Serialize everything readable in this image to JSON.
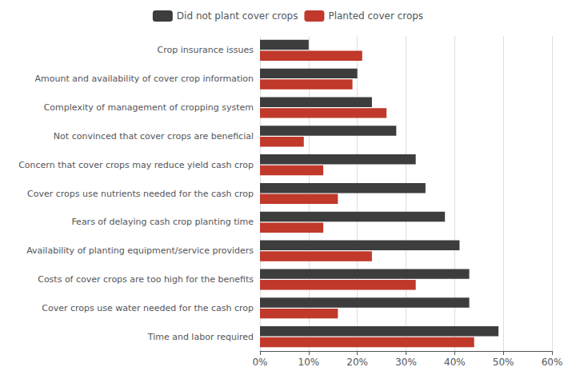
{
  "chart_data": {
    "type": "bar",
    "orientation": "horizontal",
    "categories": [
      "Time and labor required",
      "Cover crops use water needed for the cash crop",
      "Costs of cover crops are too high for the benefits",
      "Availability of planting equipment/service providers",
      "Fears of delaying cash crop planting time",
      "Cover crops use nutrients needed for the cash crop",
      "Concern that cover crops may reduce yield cash crop",
      "Not convinced that cover crops are beneficial",
      "Complexity of management of cropping system",
      "Amount and availability of cover crop information",
      "Crop insurance issues"
    ],
    "series": [
      {
        "name": "Did not plant cover crops",
        "color": "#3D3D3D",
        "values": [
          0.49,
          0.43,
          0.43,
          0.41,
          0.38,
          0.34,
          0.32,
          0.28,
          0.23,
          0.2,
          0.1
        ]
      },
      {
        "name": "Planted cover crops",
        "color": "#C0392B",
        "values": [
          0.44,
          0.16,
          0.32,
          0.23,
          0.13,
          0.16,
          0.13,
          0.09,
          0.26,
          0.19,
          0.21
        ]
      }
    ],
    "xlim": [
      0,
      0.6
    ],
    "xticks": [
      {
        "value": 0.0,
        "label": "0%"
      },
      {
        "value": 0.1,
        "label": "10%"
      },
      {
        "value": 0.2,
        "label": "20%"
      },
      {
        "value": 0.3,
        "label": "30%"
      },
      {
        "value": 0.4,
        "label": "40%"
      },
      {
        "value": 0.5,
        "label": "50%"
      },
      {
        "value": 0.6,
        "label": "60%"
      }
    ],
    "grid": true,
    "legend": "top"
  }
}
